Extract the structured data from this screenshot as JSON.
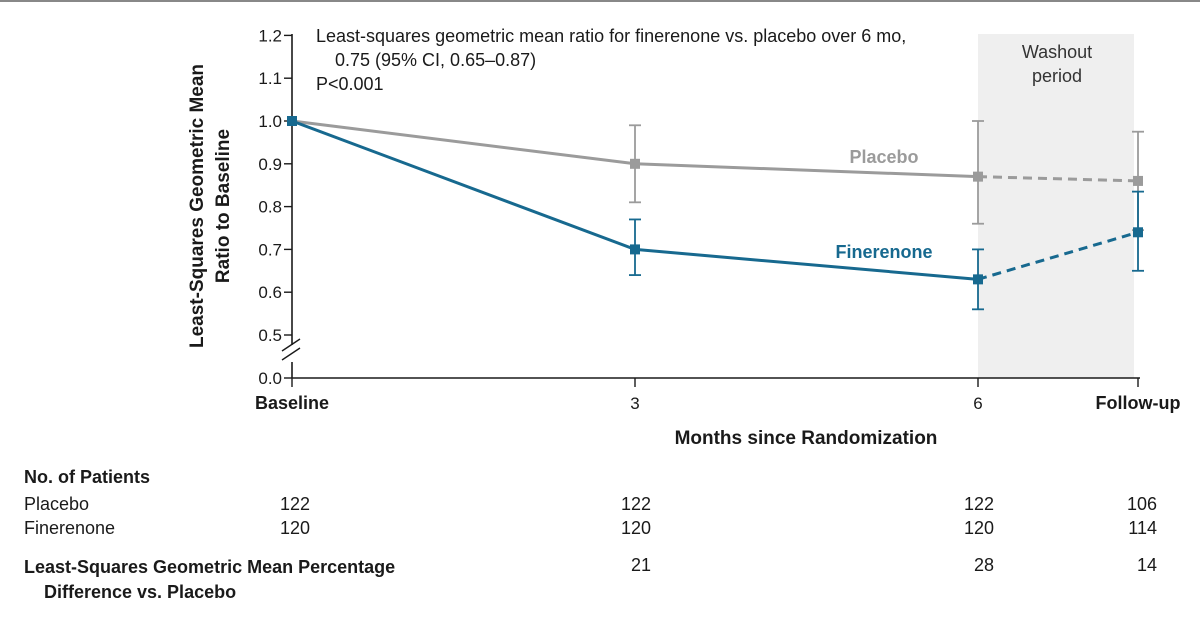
{
  "chart_data": {
    "type": "line",
    "x_categories": [
      "Baseline",
      "3",
      "6",
      "Follow-up"
    ],
    "xlabel": "Months since Randomization",
    "ylabel_line1": "Least-Squares Geometric Mean",
    "ylabel_line2": "Ratio to Baseline",
    "y_ticks": [
      "0.0",
      "0.5",
      "0.6",
      "0.7",
      "0.8",
      "0.9",
      "1.0",
      "1.1",
      "1.2"
    ],
    "y_axis_break": true,
    "ylim": [
      0.0,
      1.2
    ],
    "shaded_region": {
      "from": "6",
      "to": "Follow-up",
      "label_line1": "Washout",
      "label_line2": "period"
    },
    "annotation": {
      "line1": "Least-squares geometric mean ratio for finerenone vs. placebo over 6 mo,",
      "line2": "0.75 (95% CI, 0.65–0.87)",
      "line3": "P<0.001"
    },
    "series": [
      {
        "name": "Placebo",
        "color": "#9b9b9b",
        "values": [
          1.0,
          0.9,
          0.87,
          0.86
        ],
        "ci_low": [
          null,
          0.81,
          0.76,
          0.745
        ],
        "ci_high": [
          null,
          0.99,
          1.0,
          0.975
        ],
        "dashed_after_index": 2
      },
      {
        "name": "Finerenone",
        "color": "#17698f",
        "values": [
          1.0,
          0.7,
          0.63,
          0.74
        ],
        "ci_low": [
          null,
          0.64,
          0.56,
          0.65
        ],
        "ci_high": [
          null,
          0.77,
          0.7,
          0.835
        ],
        "dashed_after_index": 2
      }
    ]
  },
  "table": {
    "patients_header": "No. of Patients",
    "rows": [
      {
        "label": "Placebo",
        "values": [
          "122",
          "122",
          "122",
          "106"
        ]
      },
      {
        "label": "Finerenone",
        "values": [
          "120",
          "120",
          "120",
          "114"
        ]
      }
    ],
    "diff_label_line1": "Least-Squares Geometric Mean Percentage",
    "diff_label_line2": "Difference vs. Placebo",
    "diff_values": [
      "",
      "21",
      "28",
      "14"
    ]
  }
}
